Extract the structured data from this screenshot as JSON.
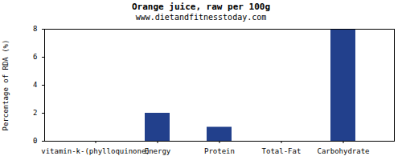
{
  "chart_data": {
    "type": "bar",
    "title": "Orange juice, raw per 100g",
    "subtitle": "www.dietandfitnesstoday.com",
    "y_label": "Percentage of RDA (%)",
    "categories": [
      "vitamin-k-(phylloquinone)",
      "Energy",
      "Protein",
      "Total-Fat",
      "Carbohydrate"
    ],
    "values": [
      0,
      2,
      1,
      0,
      8
    ],
    "color": "#22408c",
    "ylim": [
      0,
      8
    ],
    "yticks": [
      0,
      2,
      4,
      6,
      8
    ],
    "grid": false
  }
}
